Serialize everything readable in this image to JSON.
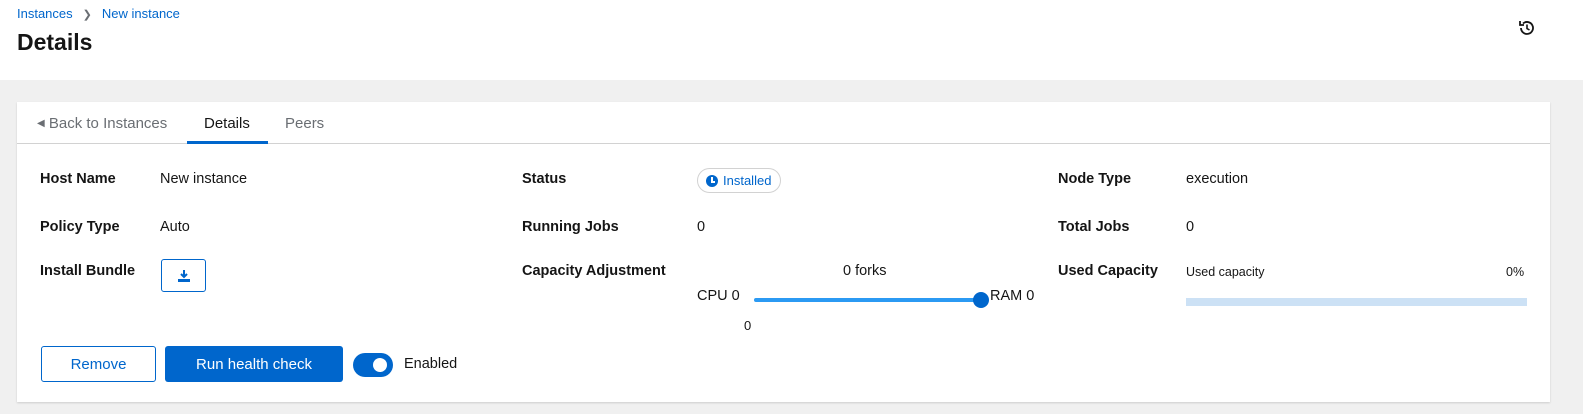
{
  "breadcrumb": {
    "items": [
      "Instances",
      "New instance"
    ],
    "separator": ">"
  },
  "page_title": "Details",
  "header_icon": "history-icon",
  "tabs": [
    {
      "label": "Back to Instances",
      "icon": "caret-left-icon"
    },
    {
      "label": "Details",
      "active": true
    },
    {
      "label": "Peers"
    }
  ],
  "details": {
    "host_name": {
      "label": "Host Name",
      "value": "New instance"
    },
    "policy_type": {
      "label": "Policy Type",
      "value": "Auto"
    },
    "install_bundle": {
      "label": "Install Bundle",
      "icon": "download-icon"
    },
    "status": {
      "label": "Status",
      "value": "Installed",
      "icon": "clock-icon"
    },
    "running_jobs": {
      "label": "Running Jobs",
      "value": "0"
    },
    "capacity_adjustment": {
      "label": "Capacity Adjustment",
      "forks": "0 forks",
      "min_label": "CPU 0",
      "max_label": "RAM 0",
      "value": "0",
      "slider_fraction": 1.0
    },
    "node_type": {
      "label": "Node Type",
      "value": "execution"
    },
    "total_jobs": {
      "label": "Total Jobs",
      "value": "0"
    },
    "used_capacity": {
      "label": "Used Capacity",
      "bar_label": "Used capacity",
      "percent_text": "0%",
      "percent": 0
    }
  },
  "actions": {
    "remove": "Remove",
    "health_check": "Run health check",
    "toggle_label": "Enabled",
    "toggle_on": true
  },
  "colors": {
    "accent": "#0066cc",
    "slider": "#2b9af3",
    "progress_track": "#cce1f5"
  }
}
